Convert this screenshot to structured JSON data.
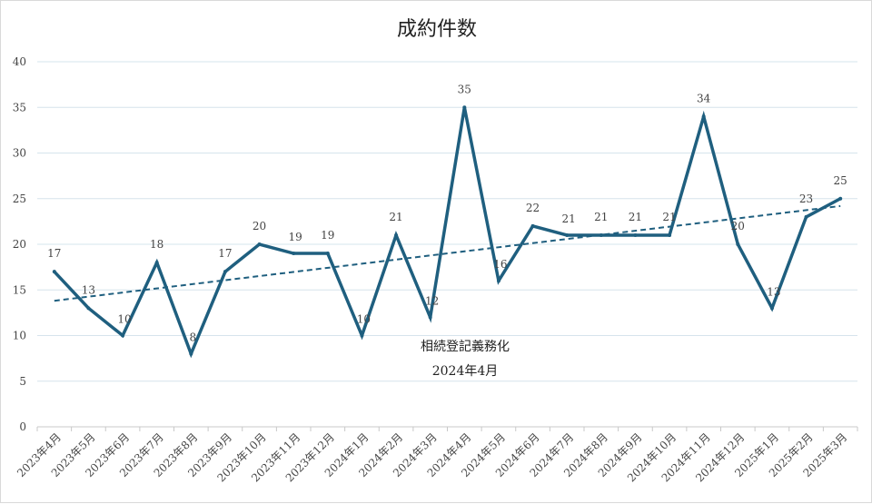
{
  "chart_data": {
    "type": "line",
    "title": "成約件数",
    "categories": [
      "2023年4月",
      "2023年5月",
      "2023年6月",
      "2023年7月",
      "2023年8月",
      "2023年9月",
      "2023年10月",
      "2023年11月",
      "2023年12月",
      "2024年1月",
      "2024年2月",
      "2024年3月",
      "2024年4月",
      "2024年5月",
      "2024年6月",
      "2024年7月",
      "2024年8月",
      "2024年9月",
      "2024年10月",
      "2024年11月",
      "2024年12月",
      "2025年1月",
      "2025年2月",
      "2025年3月"
    ],
    "values": [
      17,
      13,
      10,
      18,
      8,
      17,
      20,
      19,
      19,
      10,
      21,
      12,
      35,
      16,
      22,
      21,
      21,
      21,
      21,
      34,
      20,
      13,
      23,
      25
    ],
    "ylim": [
      0,
      40
    ],
    "yticks": [
      0,
      5,
      10,
      15,
      20,
      25,
      30,
      35,
      40
    ],
    "trendline": {
      "type": "linear",
      "style": "dashed"
    },
    "data_labels": true,
    "grid": true,
    "legend": "none",
    "annotation": {
      "lines": [
        "相続登記義務化",
        "2024年4月"
      ]
    },
    "colors": {
      "series": "#1f5f7f",
      "trend": "#1f5f7f",
      "grid": "#d6e4ec",
      "axis": "#c8c8c8"
    }
  }
}
